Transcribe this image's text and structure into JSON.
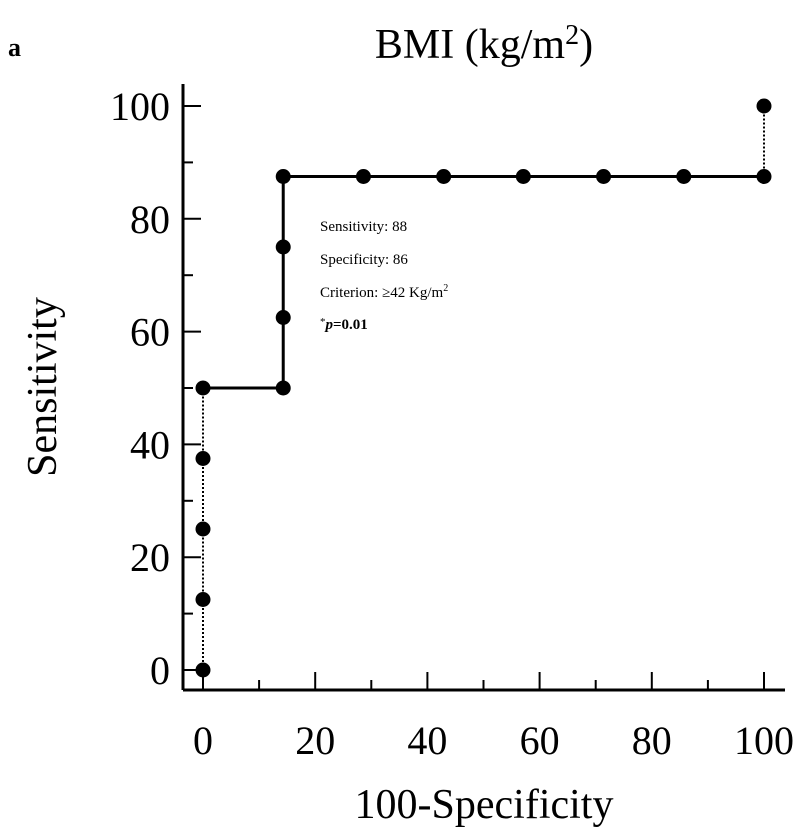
{
  "panel_label": "a",
  "chart_data": {
    "type": "line",
    "title": "BMI (kg/m",
    "title_superscript": "2",
    "title_suffix": ")",
    "xlabel": "100-Specificity",
    "ylabel": "Sensitivity",
    "xlim": [
      0,
      100
    ],
    "ylim": [
      0,
      100
    ],
    "xticks": [
      0,
      20,
      40,
      60,
      80,
      100
    ],
    "yticks": [
      0,
      20,
      40,
      60,
      80,
      100
    ],
    "series": [
      {
        "x": [
          0,
          0,
          0,
          0,
          0,
          14.3,
          14.3,
          14.3,
          14.3,
          28.6,
          42.9,
          57.1,
          71.4,
          85.7,
          100,
          100
        ],
        "y": [
          0,
          12.5,
          25,
          37.5,
          50,
          50,
          62.5,
          75,
          87.5,
          87.5,
          87.5,
          87.5,
          87.5,
          87.5,
          87.5,
          100
        ]
      }
    ],
    "annotations": {
      "sensitivity": "Sensitivity: 88",
      "specificity": "Specificity: 86",
      "criterion": "Criterion: ≥42 Kg/m",
      "criterion_superscript": "2",
      "p_star": "*",
      "p_symbol": "p",
      "p_value": "=0.01"
    },
    "grid": false,
    "legend": "none",
    "color": "#000000"
  }
}
